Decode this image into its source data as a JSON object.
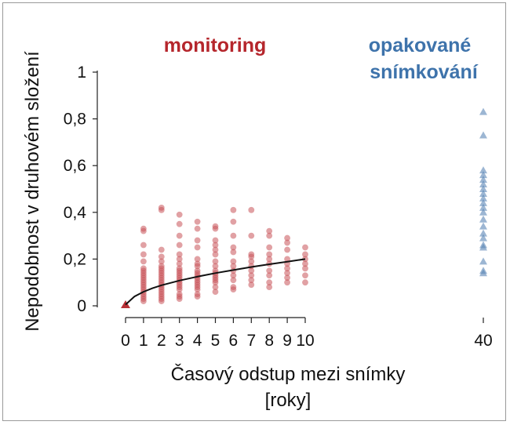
{
  "chart_data": {
    "type": "scatter",
    "ylabel": "Nepodobnost v druhovém složení",
    "xlabel_line1": "Časový odstup mezi snímky",
    "xlabel_line2": "[roky]",
    "ylim": [
      0,
      1
    ],
    "yticks": [
      {
        "v": 0,
        "label": "0"
      },
      {
        "v": 0.2,
        "label": "0,2"
      },
      {
        "v": 0.4,
        "label": "0,4"
      },
      {
        "v": 0.6,
        "label": "0,6"
      },
      {
        "v": 0.8,
        "label": "0,8"
      },
      {
        "v": 1,
        "label": "1"
      }
    ],
    "xticks": [
      "0",
      "1",
      "2",
      "3",
      "4",
      "5",
      "6",
      "7",
      "8",
      "9",
      "10",
      "40"
    ],
    "annotations": {
      "monitoring": "monitoring",
      "repeat_line1": "opakované",
      "repeat_line2": "snímkování"
    },
    "colors": {
      "monitoring": "#b5262c",
      "monitoring_points": "#c9545a",
      "repeat": "#3e73ab",
      "repeat_points": "#5a85b5",
      "fit": "#111111"
    },
    "series": [
      {
        "points": [
          {
            "x": 0,
            "y": [
              0.0
            ]
          },
          {
            "x": 1,
            "y": [
              0.32,
              0.33,
              0.26,
              0.22,
              0.19,
              0.16,
              0.15,
              0.14,
              0.13,
              0.12,
              0.11,
              0.1,
              0.09,
              0.08,
              0.07,
              0.06,
              0.05,
              0.04,
              0.03,
              0.02
            ]
          },
          {
            "x": 2,
            "y": [
              0.42,
              0.41,
              0.24,
              0.21,
              0.19,
              0.17,
              0.16,
              0.15,
              0.14,
              0.13,
              0.12,
              0.11,
              0.1,
              0.09,
              0.08,
              0.07,
              0.06,
              0.05,
              0.04,
              0.03,
              0.02
            ]
          },
          {
            "x": 3,
            "y": [
              0.39,
              0.35,
              0.3,
              0.26,
              0.22,
              0.2,
              0.18,
              0.16,
              0.15,
              0.14,
              0.13,
              0.12,
              0.11,
              0.1,
              0.09,
              0.08,
              0.07,
              0.05,
              0.04,
              0.03
            ]
          },
          {
            "x": 4,
            "y": [
              0.36,
              0.33,
              0.28,
              0.25,
              0.2,
              0.18,
              0.17,
              0.15,
              0.14,
              0.13,
              0.12,
              0.11,
              0.1,
              0.09,
              0.08,
              0.07,
              0.05,
              0.04
            ]
          },
          {
            "x": 5,
            "y": [
              0.34,
              0.33,
              0.28,
              0.26,
              0.24,
              0.22,
              0.19,
              0.17,
              0.15,
              0.14,
              0.13,
              0.12,
              0.11,
              0.1,
              0.08,
              0.06
            ]
          },
          {
            "x": 6,
            "y": [
              0.41,
              0.36,
              0.3,
              0.25,
              0.23,
              0.19,
              0.17,
              0.15,
              0.13,
              0.11,
              0.08,
              0.07
            ]
          },
          {
            "x": 7,
            "y": [
              0.41,
              0.3,
              0.22,
              0.21,
              0.19,
              0.17,
              0.15,
              0.13,
              0.11,
              0.09
            ]
          },
          {
            "x": 8,
            "y": [
              0.32,
              0.3,
              0.25,
              0.22,
              0.2,
              0.18,
              0.15,
              0.13,
              0.1,
              0.08
            ]
          },
          {
            "x": 9,
            "y": [
              0.29,
              0.27,
              0.24,
              0.2,
              0.18,
              0.16,
              0.14,
              0.12,
              0.1
            ]
          },
          {
            "x": 10,
            "y": [
              0.25,
              0.22,
              0.2,
              0.18,
              0.16,
              0.13,
              0.1
            ]
          }
        ]
      },
      {
        "points": [
          {
            "x": 40,
            "y": [
              0.83,
              0.73,
              0.58,
              0.56,
              0.54,
              0.52,
              0.5,
              0.48,
              0.46,
              0.44,
              0.42,
              0.4,
              0.37,
              0.34,
              0.31,
              0.29,
              0.26,
              0.25,
              0.19,
              0.15,
              0.14
            ]
          }
        ]
      },
      {
        "type": "line",
        "x": [
          0,
          0.5,
          1,
          1.5,
          2,
          3,
          4,
          5,
          6,
          7,
          8,
          9,
          10
        ],
        "y": [
          0.005,
          0.04,
          0.06,
          0.075,
          0.088,
          0.108,
          0.125,
          0.14,
          0.153,
          0.166,
          0.178,
          0.189,
          0.2
        ]
      }
    ]
  }
}
